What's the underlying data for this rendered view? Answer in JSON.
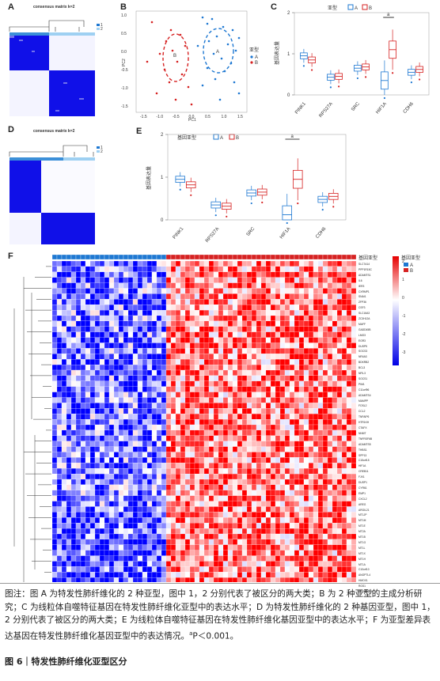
{
  "panels": {
    "A": {
      "label": "A",
      "title": "consensus matrix k=2"
    },
    "B": {
      "label": "B",
      "xlabel": "PC1",
      "ylabel": "PC2",
      "legend_title": "亚型",
      "legend_a": "A",
      "legend_b": "B",
      "ellipse_a": "A",
      "ellipse_b": "B",
      "color_a": "#1e78d2",
      "color_b": "#d62222"
    },
    "C": {
      "label": "C",
      "legend_title": "亚型",
      "legend_a": "A",
      "legend_b": "B",
      "ylabel": "基因表达量",
      "sig": "a"
    },
    "D": {
      "label": "D",
      "title": "consensus matrix k=2"
    },
    "E": {
      "label": "E",
      "legend_title": "基因亚型",
      "legend_a": "A",
      "legend_b": "B",
      "ylabel": "基因表达量",
      "sig": "a"
    },
    "F": {
      "label": "F",
      "annot_label": "基因亚型",
      "legend_title": "基因亚型",
      "legend_a": "A",
      "legend_b": "B",
      "scale_ticks": [
        "2",
        "1",
        "0",
        "-1",
        "-2",
        "-3"
      ]
    }
  },
  "genes_box": [
    "PINK1",
    "RPS27A",
    "SRC",
    "HIF1A",
    "CDH6"
  ],
  "chart_data": [
    {
      "type": "box",
      "panel": "C",
      "categories": [
        "PINK1",
        "RPS27A",
        "SRC",
        "HIF1A",
        "CDH6"
      ],
      "ylim": [
        0,
        2
      ],
      "yticks": [
        0,
        1,
        2
      ],
      "series": [
        {
          "name": "A",
          "median": [
            0.95,
            0.43,
            0.65,
            0.35,
            0.55
          ]
        },
        {
          "name": "B",
          "median": [
            0.85,
            0.45,
            0.68,
            1.1,
            0.62
          ]
        }
      ]
    },
    {
      "type": "box",
      "panel": "E",
      "categories": [
        "PINK1",
        "RPS27A",
        "SRC",
        "HIF1A",
        "CDH6"
      ],
      "ylim": [
        0,
        2
      ],
      "yticks": [
        0,
        1,
        2
      ],
      "series": [
        {
          "name": "A",
          "median": [
            0.95,
            0.35,
            0.63,
            0.12,
            0.48
          ]
        },
        {
          "name": "B",
          "median": [
            0.82,
            0.32,
            0.65,
            0.95,
            0.55
          ]
        }
      ]
    },
    {
      "type": "scatter",
      "panel": "B",
      "xticks": [
        "-1.5",
        "-1.0",
        "-0.5",
        "0.0",
        "0.5",
        "1.0",
        "1.5"
      ],
      "yticks": [
        "-1.5",
        "-1.0",
        "-0.5",
        "0.0",
        "0.5",
        "1.0"
      ]
    }
  ],
  "heatmap_genes": [
    "SLC7A14",
    "PPP1R15C",
    "ADAMTS1",
    "IL6",
    "IER3",
    "CXRMP1",
    "SNAI1",
    "ZFP36",
    "CSF3",
    "SLC16A3",
    "ZC3H12A",
    "MAFF",
    "GADD45B",
    "LMO3",
    "EGR3",
    "DUSP5",
    "SOCS3",
    "NR4A3",
    "BDKRB2",
    "BCL3",
    "NFIL3",
    "SOCS1",
    "PIM1",
    "C11orf96",
    "ADAMTS4",
    "MAMPP",
    "FOSL2",
    "CCL2",
    "TNFAIP6",
    "HTR1KH",
    "CTAFX",
    "NNMT",
    "TNFRSF6B",
    "ADAMTS5",
    "THBS1",
    "SPP13",
    "C15orf15",
    "HIF1A",
    "CREB11",
    "FJX1",
    "DUSP1",
    "CYR61",
    "EMP1",
    "CXCL2",
    "AREG",
    "ARGIL21",
    "MT1JP",
    "MT1M",
    "MT1E",
    "MT2A",
    "MT1B",
    "MT1G",
    "MT1L",
    "MT1X",
    "MT1H",
    "MT1A",
    "C10orf10",
    "ANGPTL4",
    "HMOX1",
    "RGS1",
    "ARGBEC3A"
  ],
  "caption": "图注：图 A 为特发性肺纤维化的 2 种亚型，图中 1，2 分别代表了被区分的两大类；B 为 2 种亚型的主成分析研究；C 为线粒体自噬特征基因在特发性肺纤维化亚型中的表达水平；D 为特发性肺纤维化的 2 种基因亚型，图中 1，2 分别代表了被区分的两大类；E 为线粒体自噬特征基因在特发性肺纤维化基因亚型中的表达水平；F 为亚型差异表达基因在特发性肺纤维化基因亚型中的表达情况。",
  "caption_tail": "P＜0.001。",
  "caption_sup": "a",
  "figure_title": "图 6｜特发性肺纤维化亚型区分"
}
